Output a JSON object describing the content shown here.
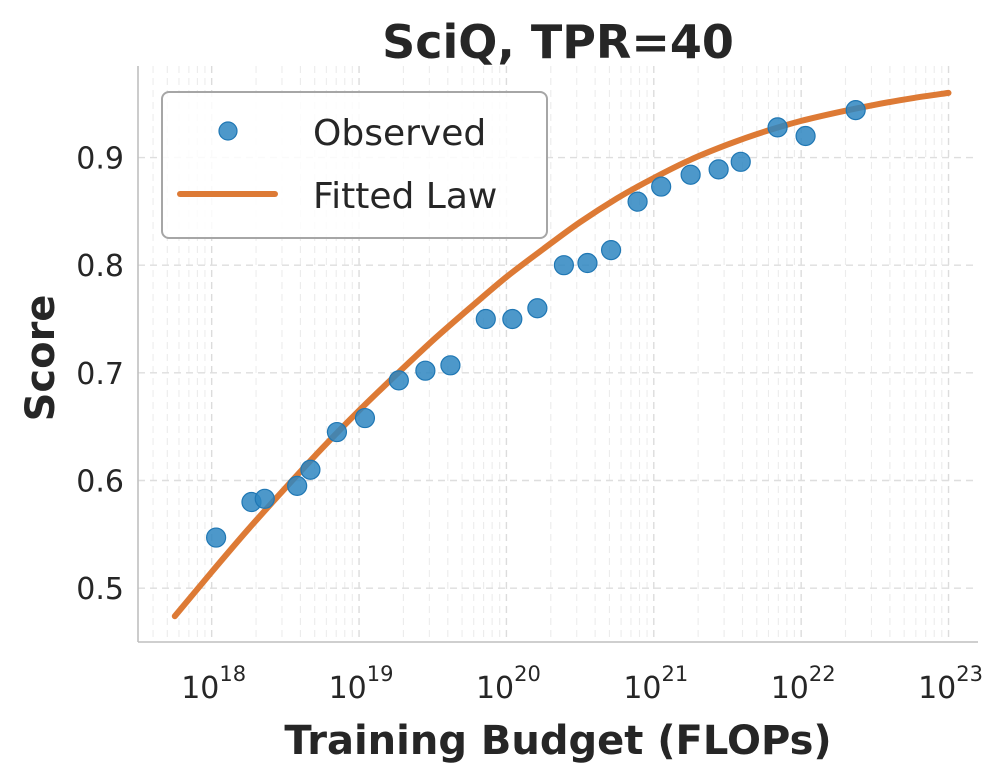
{
  "chart_data": {
    "type": "scatter",
    "title": "SciQ, TPR=40",
    "xlabel": "Training Budget (FLOPs)",
    "ylabel": "Score",
    "xscale": "log",
    "xlim_log10": [
      17.5,
      23.2
    ],
    "ylim": [
      0.45,
      0.985
    ],
    "grid": true,
    "legend_position": "upper-left",
    "x_ticks": [
      {
        "base": "10",
        "exp": "18",
        "log10": 18
      },
      {
        "base": "10",
        "exp": "19",
        "log10": 19
      },
      {
        "base": "10",
        "exp": "20",
        "log10": 20
      },
      {
        "base": "10",
        "exp": "21",
        "log10": 21
      },
      {
        "base": "10",
        "exp": "22",
        "log10": 22
      },
      {
        "base": "10",
        "exp": "23",
        "log10": 23
      }
    ],
    "y_ticks": [
      {
        "label": "0.5",
        "value": 0.5
      },
      {
        "label": "0.6",
        "value": 0.6
      },
      {
        "label": "0.7",
        "value": 0.7
      },
      {
        "label": "0.8",
        "value": 0.8
      },
      {
        "label": "0.9",
        "value": 0.9
      }
    ],
    "series": [
      {
        "name": "Observed",
        "kind": "scatter",
        "color": "#2e86c1",
        "log10_x": [
          18.03,
          18.27,
          18.36,
          18.58,
          18.67,
          18.85,
          19.04,
          19.27,
          19.45,
          19.62,
          19.86,
          20.04,
          20.21,
          20.39,
          20.55,
          20.71,
          20.89,
          21.05,
          21.25,
          21.44,
          21.59,
          21.84,
          22.03,
          22.37
        ],
        "y": [
          0.547,
          0.58,
          0.583,
          0.595,
          0.61,
          0.645,
          0.658,
          0.693,
          0.702,
          0.707,
          0.75,
          0.75,
          0.76,
          0.8,
          0.802,
          0.814,
          0.859,
          0.873,
          0.884,
          0.889,
          0.896,
          0.928,
          0.92,
          0.944
        ]
      },
      {
        "name": "Fitted Law",
        "kind": "line",
        "color": "#dd7a35",
        "log10_x": [
          17.75,
          18.0,
          18.25,
          18.5,
          18.75,
          19.0,
          19.25,
          19.5,
          19.75,
          20.0,
          20.25,
          20.5,
          20.75,
          21.0,
          21.25,
          21.5,
          21.75,
          22.0,
          22.25,
          22.5,
          22.75,
          23.0
        ],
        "y": [
          0.474,
          0.515,
          0.555,
          0.593,
          0.63,
          0.665,
          0.698,
          0.73,
          0.76,
          0.789,
          0.815,
          0.84,
          0.862,
          0.881,
          0.898,
          0.912,
          0.924,
          0.934,
          0.942,
          0.949,
          0.955,
          0.96
        ]
      }
    ]
  }
}
